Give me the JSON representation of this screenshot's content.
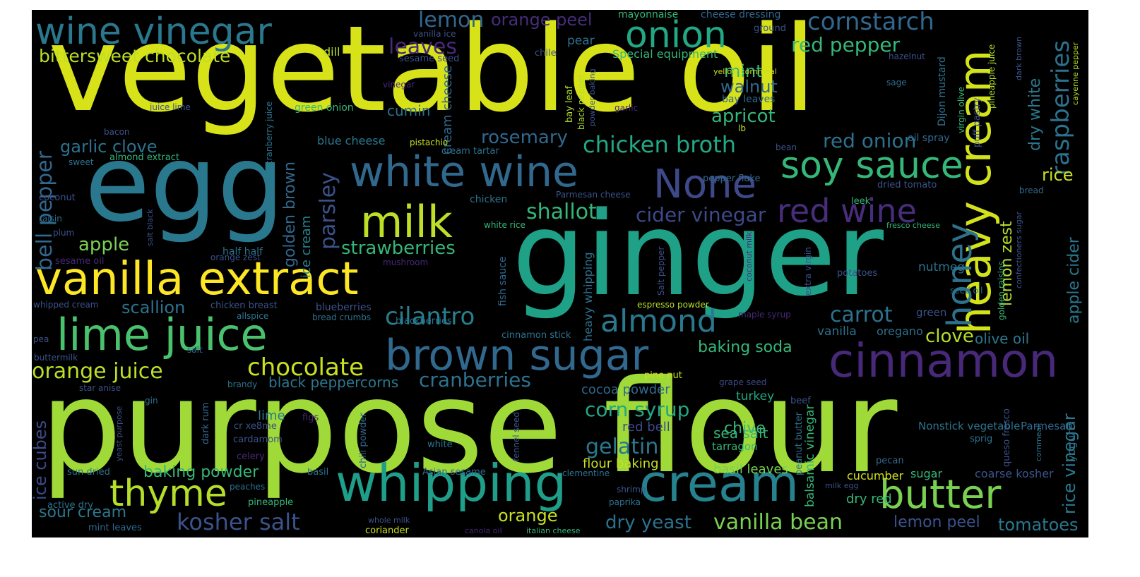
{
  "words": [
    {
      "text": "vegetable oil",
      "color": "#d8e219"
    },
    {
      "text": "purpose flour",
      "color": "#a0da39"
    },
    {
      "text": "ginger",
      "color": "#1fa187"
    },
    {
      "text": "egg",
      "color": "#2a788e"
    },
    {
      "text": "vanilla extract",
      "color": "#fde725"
    },
    {
      "text": "whipping",
      "color": "#1f9e89"
    },
    {
      "text": "cream",
      "color": "#26828e"
    },
    {
      "text": "brown sugar",
      "color": "#31688e"
    },
    {
      "text": "white wine",
      "color": "#31688e"
    },
    {
      "text": "lime juice",
      "color": "#4ac16d"
    },
    {
      "text": "cinnamon",
      "color": "#482878"
    },
    {
      "text": "milk",
      "color": "#bddf26"
    },
    {
      "text": "onion",
      "color": "#22a884"
    },
    {
      "text": "wine vinegar",
      "color": "#2a788e"
    },
    {
      "text": "None",
      "color": "#3e4989"
    },
    {
      "text": "soy sauce",
      "color": "#35b779"
    },
    {
      "text": "butter",
      "color": "#7ad151"
    },
    {
      "text": "heavy cream",
      "color": "#d2e21b"
    },
    {
      "text": "red wine",
      "color": "#472d7b"
    },
    {
      "text": "thyme",
      "color": "#b5de2b"
    },
    {
      "text": "honey",
      "color": "#2c728e"
    },
    {
      "text": "almond",
      "color": "#2a788e"
    },
    {
      "text": "chocolate",
      "color": "#c8e020"
    },
    {
      "text": "cilantro",
      "color": "#277f8e"
    },
    {
      "text": "orange juice",
      "color": "#bddf26"
    },
    {
      "text": "kosher salt",
      "color": "#3b528b"
    },
    {
      "text": "vanilla bean",
      "color": "#7ad151"
    },
    {
      "text": "red pepper",
      "color": "#35b779"
    },
    {
      "text": "chicken broth",
      "color": "#22a884"
    },
    {
      "text": "cornstarch",
      "color": "#31688e"
    },
    {
      "text": "raspberries",
      "color": "#2c728e"
    },
    {
      "text": "dry yeast",
      "color": "#2c728e"
    },
    {
      "text": "tomatoes",
      "color": "#2a788e"
    },
    {
      "text": "strawberries",
      "color": "#35b779"
    },
    {
      "text": "lemon peel",
      "color": "#3b528b"
    },
    {
      "text": "bittersweet chocolate",
      "color": "#bddf26"
    },
    {
      "text": "gelatin",
      "color": "#2a788e"
    },
    {
      "text": "shallot",
      "color": "#35b779"
    },
    {
      "text": "cider vinegar",
      "color": "#3e4989"
    },
    {
      "text": "rosemary",
      "color": "#31688e"
    },
    {
      "text": "parsley",
      "color": "#3b528b"
    },
    {
      "text": "carrot",
      "color": "#2c728e"
    },
    {
      "text": "baking powder",
      "color": "#35b779"
    },
    {
      "text": "sour cream",
      "color": "#2a788e"
    },
    {
      "text": "cranberries",
      "color": "#2c728e"
    },
    {
      "text": "lemon",
      "color": "#31688e"
    },
    {
      "text": "red onion",
      "color": "#2c728e"
    },
    {
      "text": "bell pepper",
      "color": "#31688e"
    },
    {
      "text": "garlic clove",
      "color": "#2c728e"
    },
    {
      "text": "corn syrup",
      "color": "#22a884"
    },
    {
      "text": "apricot",
      "color": "#35b779"
    },
    {
      "text": "baking soda",
      "color": "#35b779"
    },
    {
      "text": "rice vinegar",
      "color": "#2a788e"
    },
    {
      "text": "orange",
      "color": "#c8e020"
    },
    {
      "text": "apple",
      "color": "#7ad151"
    },
    {
      "text": "scallion",
      "color": "#2c728e"
    },
    {
      "text": "clove",
      "color": "#b5de2b"
    },
    {
      "text": "leaves",
      "color": "#482878"
    },
    {
      "text": "walnut",
      "color": "#31688e"
    },
    {
      "text": "apple cider",
      "color": "#2a788e"
    },
    {
      "text": "lemon zest",
      "color": "#b5de2b"
    },
    {
      "text": "dry white",
      "color": "#2a788e"
    },
    {
      "text": "mint",
      "color": "#35b779"
    },
    {
      "text": "golden brown",
      "color": "#31688e"
    },
    {
      "text": "rice",
      "color": "#c8e020"
    },
    {
      "text": "orange peel",
      "color": "#472d7b"
    },
    {
      "text": "black peppercorns",
      "color": "#2a788e"
    },
    {
      "text": "cumin",
      "color": "#2c728e"
    },
    {
      "text": "chive",
      "color": "#35b779"
    },
    {
      "text": "ice cubes",
      "color": "#3e4989"
    },
    {
      "text": "olive oil",
      "color": "#2a788e"
    },
    {
      "text": "cocoa powder",
      "color": "#31688e"
    },
    {
      "text": "flour baking",
      "color": "#c8e020"
    },
    {
      "text": "sea salt",
      "color": "#35b779"
    },
    {
      "text": "basil leaves",
      "color": "#7ad151"
    },
    {
      "text": "nutmeg",
      "color": "#2c728e"
    },
    {
      "text": "cream cheese",
      "color": "#31688e"
    },
    {
      "text": "lime",
      "color": "#2a788e"
    },
    {
      "text": "red bell",
      "color": "#3e4989"
    },
    {
      "text": "vanilla",
      "color": "#2c728e"
    },
    {
      "text": "dry red",
      "color": "#35b779"
    },
    {
      "text": "ice cream",
      "color": "#26828e"
    },
    {
      "text": "pear",
      "color": "#2c728e"
    },
    {
      "text": "turkey",
      "color": "#22a884"
    },
    {
      "text": "mayonnaise",
      "color": "#35b779"
    },
    {
      "text": "cheese dressing",
      "color": "#31688e"
    },
    {
      "text": "tarragon",
      "color": "#35b779"
    },
    {
      "text": "blue cheese",
      "color": "#2a788e"
    },
    {
      "text": "balsamic vinegar",
      "color": "#35b779"
    },
    {
      "text": "cucumber",
      "color": "#d2e21b"
    },
    {
      "text": "sugar",
      "color": "#35b779"
    },
    {
      "text": "coarse kosher",
      "color": "#3b528b"
    },
    {
      "text": "Nonstick vegetable",
      "color": "#2c728e"
    },
    {
      "text": "Parmesan",
      "color": "#31688e"
    },
    {
      "text": "heavy whipping",
      "color": "#2c728e"
    },
    {
      "text": "yogurt",
      "color": "#2c728e"
    },
    {
      "text": "green",
      "color": "#3b528b"
    },
    {
      "text": "oregano",
      "color": "#2c728e"
    },
    {
      "text": "Special equipment",
      "color": "#35b779"
    },
    {
      "text": "dill",
      "color": "#b5de2b"
    },
    {
      "text": "half half",
      "color": "#2c728e"
    },
    {
      "text": "chicken",
      "color": "#2c728e"
    },
    {
      "text": "fish sauce",
      "color": "#31688e"
    },
    {
      "text": "sesame seed",
      "color": "#3b528b"
    },
    {
      "text": "Parmesan cheese",
      "color": "#3b528b"
    },
    {
      "text": "potatoes",
      "color": "#3b528b"
    },
    {
      "text": "green onion",
      "color": "#35b779"
    },
    {
      "text": "bay leaves",
      "color": "#31688e"
    },
    {
      "text": "Dijon mustard",
      "color": "#2c728e"
    },
    {
      "text": "puff pastry",
      "color": "#3b528b"
    },
    {
      "text": "dried tomato",
      "color": "#3b528b"
    },
    {
      "text": "oil spray",
      "color": "#31688e"
    },
    {
      "text": "cream tartar",
      "color": "#2c728e"
    },
    {
      "text": "pepper flake",
      "color": "#31688e"
    },
    {
      "text": "leek",
      "color": "#35b779"
    },
    {
      "text": "bread",
      "color": "#31688e"
    },
    {
      "text": "bean",
      "color": "#3b528b"
    },
    {
      "text": "golden raisins",
      "color": "#35b779"
    },
    {
      "text": "confectioners sugar",
      "color": "#3b528b"
    },
    {
      "text": "extra virgin",
      "color": "#3b528b"
    },
    {
      "text": "seed oil",
      "color": "#2c728e"
    },
    {
      "text": "salt",
      "color": "#31688e"
    },
    {
      "text": "buttermilk",
      "color": "#3b528b"
    },
    {
      "text": "star anise",
      "color": "#3b528b"
    },
    {
      "text": "gin",
      "color": "#2c728e"
    },
    {
      "text": "yeast purpose",
      "color": "#3b528b"
    },
    {
      "text": "brandy",
      "color": "#2c728e"
    },
    {
      "text": "dark rum",
      "color": "#31688e"
    },
    {
      "text": "cr xe8me",
      "color": "#3b528b"
    },
    {
      "text": "cardamom",
      "color": "#3b528b"
    },
    {
      "text": "celery",
      "color": "#482878"
    },
    {
      "text": "chili powder",
      "color": "#31688e"
    },
    {
      "text": "white",
      "color": "#2c728e"
    },
    {
      "text": "fennel seed",
      "color": "#3b528b"
    },
    {
      "text": "figs",
      "color": "#482878"
    },
    {
      "text": "Asian sesame",
      "color": "#31688e"
    },
    {
      "text": "clementine",
      "color": "#2c728e"
    },
    {
      "text": "basil",
      "color": "#2c728e"
    },
    {
      "text": "peaches",
      "color": "#2c728e"
    },
    {
      "text": "sun dried",
      "color": "#2c728e"
    },
    {
      "text": "active dry",
      "color": "#2c728e"
    },
    {
      "text": "pineapple",
      "color": "#35b779"
    },
    {
      "text": "mint leaves",
      "color": "#31688e"
    },
    {
      "text": "whole milk",
      "color": "#3b528b"
    },
    {
      "text": "coriander",
      "color": "#c8e020"
    },
    {
      "text": "canola oil",
      "color": "#482878"
    },
    {
      "text": "italian cheese",
      "color": "#35b779"
    },
    {
      "text": "shrimp",
      "color": "#3b528b"
    },
    {
      "text": "paprika",
      "color": "#2c728e"
    },
    {
      "text": "pecan",
      "color": "#31688e"
    },
    {
      "text": "milk egg",
      "color": "#3b528b"
    },
    {
      "text": "sprig",
      "color": "#2c728e"
    },
    {
      "text": "queso fresco",
      "color": "#3b528b"
    },
    {
      "text": "cornmeal",
      "color": "#2c728e"
    },
    {
      "text": "peanut butter",
      "color": "#2c728e"
    },
    {
      "text": "beef",
      "color": "#3b528b"
    },
    {
      "text": "grape seed",
      "color": "#3e4989"
    },
    {
      "text": "pine nut",
      "color": "#c8e020"
    },
    {
      "text": "maple syrup",
      "color": "#482878"
    },
    {
      "text": "espresso powder",
      "color": "#b5de2b"
    },
    {
      "text": "cinnamon stick",
      "color": "#2c728e"
    },
    {
      "text": "blackberries",
      "color": "#2c728e"
    },
    {
      "text": "blueberries",
      "color": "#3b528b"
    },
    {
      "text": "bread crumbs",
      "color": "#2c728e"
    },
    {
      "text": "chicken breast",
      "color": "#3b528b"
    },
    {
      "text": "allspice",
      "color": "#2c728e"
    },
    {
      "text": "orange zest",
      "color": "#3b528b"
    },
    {
      "text": "mushroom",
      "color": "#482878"
    },
    {
      "text": "white rice",
      "color": "#35b779"
    },
    {
      "text": "sesame oil",
      "color": "#482878"
    },
    {
      "text": "whipped cream",
      "color": "#3b528b"
    },
    {
      "text": "pea",
      "color": "#3b528b"
    },
    {
      "text": "salt black",
      "color": "#3b528b"
    },
    {
      "text": "plum",
      "color": "#3b528b"
    },
    {
      "text": "raisin",
      "color": "#2c728e"
    },
    {
      "text": "coconut",
      "color": "#3b528b"
    },
    {
      "text": "sweet",
      "color": "#2c728e"
    },
    {
      "text": "almond extract",
      "color": "#35b779"
    },
    {
      "text": "bacon",
      "color": "#3b528b"
    },
    {
      "text": "juice lime",
      "color": "#3b528b"
    },
    {
      "text": "cranberry juice",
      "color": "#2c728e"
    },
    {
      "text": "pistachio",
      "color": "#c8e020"
    },
    {
      "text": "vinegar",
      "color": "#482878"
    },
    {
      "text": "vanilla ice",
      "color": "#3b528b"
    },
    {
      "text": "chile",
      "color": "#3b528b"
    },
    {
      "text": "ground",
      "color": "#3b528b"
    },
    {
      "text": "hazelnut",
      "color": "#3b528b"
    },
    {
      "text": "yellow cornmeal",
      "color": "#c8e020"
    },
    {
      "text": "sage",
      "color": "#2c728e"
    },
    {
      "text": "garlic",
      "color": "#482878"
    },
    {
      "text": "lb",
      "color": "#c8e020"
    },
    {
      "text": "bay leaf",
      "color": "#b5de2b"
    },
    {
      "text": "black pepper",
      "color": "#b5de2b"
    },
    {
      "text": "powder baking",
      "color": "#3b528b"
    },
    {
      "text": "pineapple juice",
      "color": "#b5de2b"
    },
    {
      "text": "virgin olive",
      "color": "#35b779"
    },
    {
      "text": "dark brown",
      "color": "#3b528b"
    },
    {
      "text": "cayenne pepper",
      "color": "#b5de2b"
    },
    {
      "text": "fresco cheese",
      "color": "#35b779"
    },
    {
      "text": "coconut milk",
      "color": "#482878"
    },
    {
      "text": "Salt pepper",
      "color": "#3b528b"
    }
  ]
}
